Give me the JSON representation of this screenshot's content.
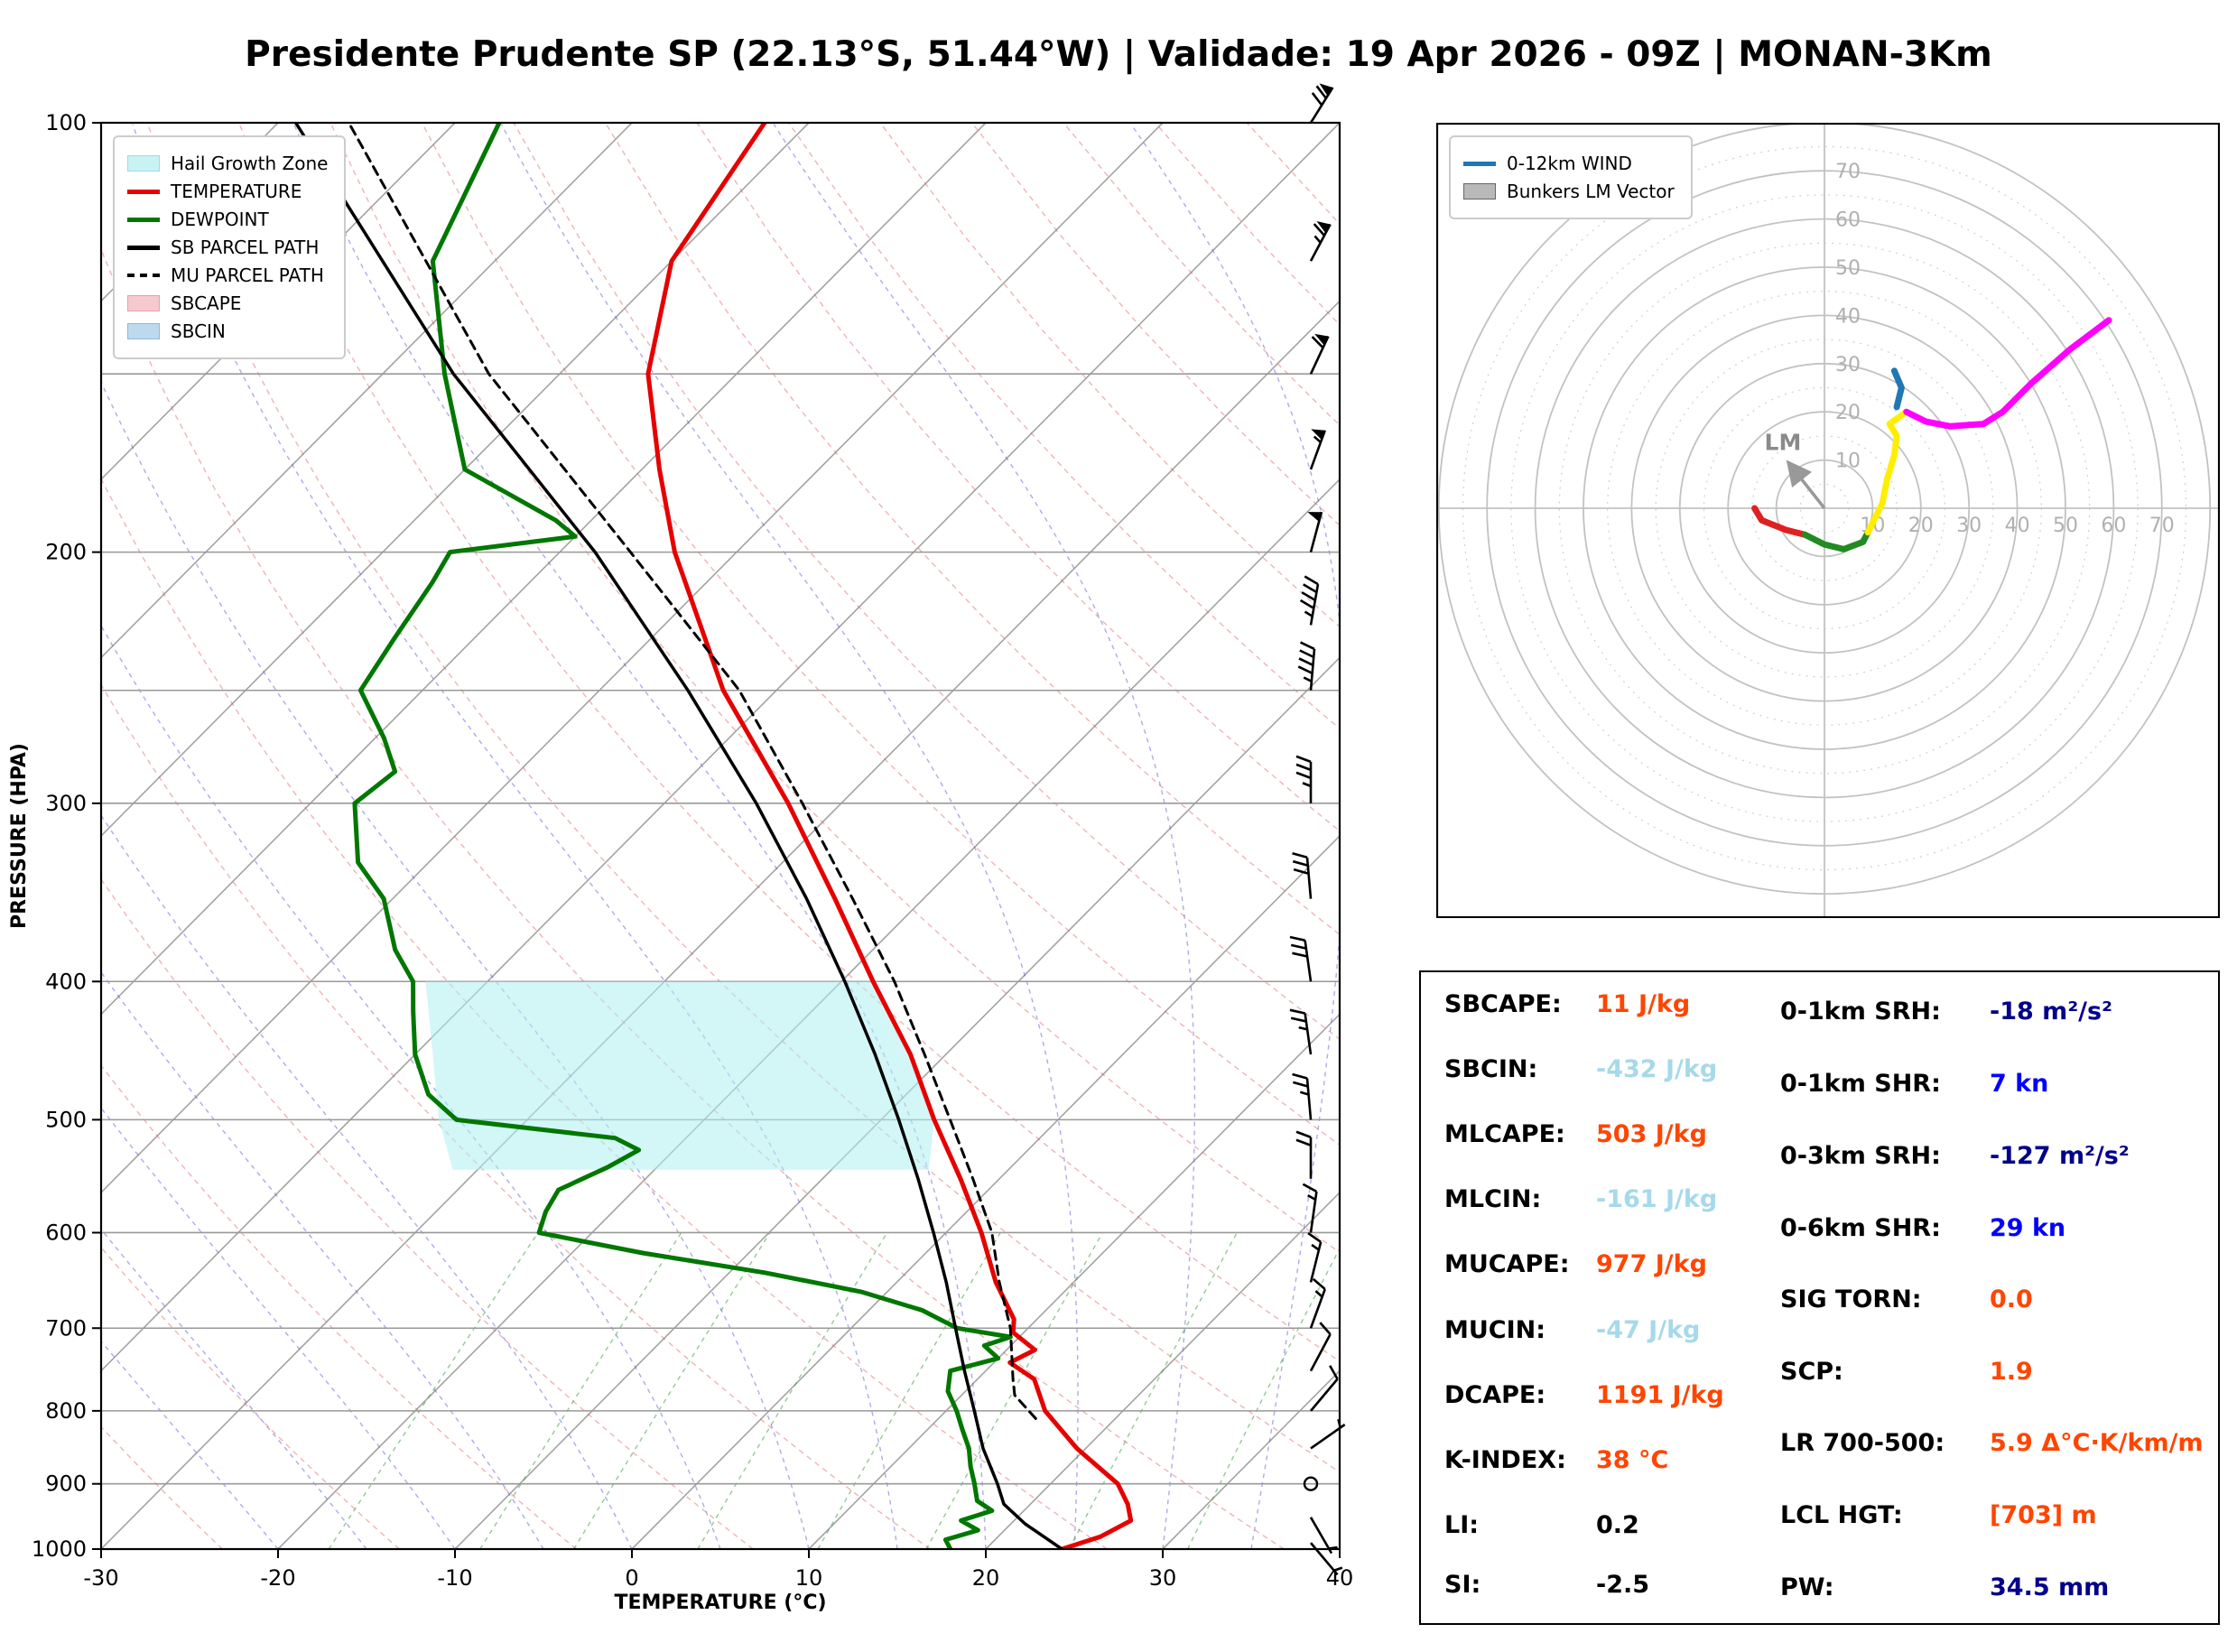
{
  "chart_data": [
    {
      "type": "line",
      "id": "skewt",
      "title": "Presidente Prudente SP (22.13°S, 51.44°W) | Validade: 19 Apr 2026 - 09Z | MONAN-3Km",
      "xlabel": "TEMPERATURE (°C)",
      "ylabel": "PRESSURE (HPA)",
      "x_axis": {
        "range": [
          -30,
          40
        ],
        "ticks": [
          -30,
          -20,
          -10,
          0,
          10,
          20,
          30,
          40
        ]
      },
      "y_axis": {
        "range": [
          1000,
          100
        ],
        "scale": "log",
        "ticks": [
          100,
          200,
          300,
          400,
          500,
          600,
          700,
          800,
          900,
          1000
        ],
        "gridlines": [
          100,
          150,
          200,
          250,
          300,
          400,
          500,
          600,
          700,
          800,
          900,
          1000
        ]
      },
      "skew_c_per_decade": 80,
      "legend": {
        "position": "upper left",
        "entries": [
          {
            "label": "Hail Growth Zone",
            "swatch": "patch",
            "color": "#c9f2f4",
            "border": "#9adfe3"
          },
          {
            "label": "TEMPERATURE",
            "swatch": "line",
            "color": "#e60000"
          },
          {
            "label": "DEWPOINT",
            "swatch": "line",
            "color": "#007700"
          },
          {
            "label": "SB PARCEL PATH",
            "swatch": "line",
            "color": "#000000"
          },
          {
            "label": "MU PARCEL PATH",
            "swatch": "dashed",
            "color": "#000000"
          },
          {
            "label": "SBCAPE",
            "swatch": "patch",
            "color": "#f6c9cf",
            "border": "#e8a0a8"
          },
          {
            "label": "SBCIN",
            "swatch": "patch",
            "color": "#bcd9ee",
            "border": "#93b8d8"
          }
        ]
      },
      "series": [
        {
          "name": "TEMPERATURE",
          "color": "#e60000",
          "width": 5,
          "points": [
            [
              1000,
              24.3
            ],
            [
              980,
              25.8
            ],
            [
              955,
              26.6
            ],
            [
              930,
              25.5
            ],
            [
              900,
              23.8
            ],
            [
              850,
              19.5
            ],
            [
              800,
              15.6
            ],
            [
              760,
              13.2
            ],
            [
              740,
              10.9
            ],
            [
              725,
              11.6
            ],
            [
              705,
              9.4
            ],
            [
              690,
              8.7
            ],
            [
              650,
              5.6
            ],
            [
              600,
              2.0
            ],
            [
              550,
              -2.2
            ],
            [
              500,
              -7.0
            ],
            [
              450,
              -12.0
            ],
            [
              400,
              -18.2
            ],
            [
              350,
              -25.0
            ],
            [
              300,
              -33.0
            ],
            [
              250,
              -43.0
            ],
            [
              200,
              -53.5
            ],
            [
              175,
              -59.0
            ],
            [
              150,
              -65.0
            ],
            [
              125,
              -70.0
            ],
            [
              100,
              -72.5
            ]
          ]
        },
        {
          "name": "DEWPOINT",
          "color": "#007700",
          "width": 5,
          "points": [
            [
              1000,
              18.0
            ],
            [
              985,
              17.2
            ],
            [
              970,
              18.5
            ],
            [
              955,
              17.0
            ],
            [
              940,
              18.2
            ],
            [
              925,
              16.8
            ],
            [
              900,
              15.7
            ],
            [
              875,
              14.5
            ],
            [
              850,
              13.4
            ],
            [
              825,
              12.0
            ],
            [
              800,
              10.6
            ],
            [
              775,
              9.0
            ],
            [
              750,
              8.0
            ],
            [
              735,
              10.0
            ],
            [
              720,
              8.5
            ],
            [
              710,
              9.5
            ],
            [
              700,
              6.0
            ],
            [
              690,
              4.5
            ],
            [
              680,
              3.0
            ],
            [
              660,
              -1.5
            ],
            [
              640,
              -8.0
            ],
            [
              620,
              -16.0
            ],
            [
              600,
              -23.0
            ],
            [
              580,
              -23.8
            ],
            [
              560,
              -24.3
            ],
            [
              540,
              -22.8
            ],
            [
              525,
              -22.0
            ],
            [
              515,
              -24.0
            ],
            [
              500,
              -34.0
            ],
            [
              480,
              -37.0
            ],
            [
              450,
              -40.0
            ],
            [
              420,
              -42.5
            ],
            [
              400,
              -44.2
            ],
            [
              380,
              -47.0
            ],
            [
              350,
              -50.5
            ],
            [
              330,
              -54.0
            ],
            [
              300,
              -57.5
            ],
            [
              285,
              -57.0
            ],
            [
              270,
              -59.5
            ],
            [
              250,
              -63.5
            ],
            [
              230,
              -64.5
            ],
            [
              210,
              -65.5
            ],
            [
              200,
              -66.2
            ],
            [
              195,
              -60.0
            ],
            [
              190,
              -62.0
            ],
            [
              175,
              -70.0
            ],
            [
              150,
              -76.5
            ],
            [
              125,
              -83.5
            ],
            [
              100,
              -87.5
            ]
          ]
        },
        {
          "name": "SB PARCEL PATH",
          "color": "#000000",
          "width": 3.5,
          "points": [
            [
              1000,
              24.3
            ],
            [
              960,
              20.8
            ],
            [
              930,
              18.5
            ],
            [
              900,
              17.0
            ],
            [
              850,
              14.2
            ],
            [
              800,
              11.6
            ],
            [
              750,
              8.8
            ],
            [
              700,
              5.9
            ],
            [
              650,
              2.8
            ],
            [
              600,
              -0.7
            ],
            [
              550,
              -4.6
            ],
            [
              500,
              -9.0
            ],
            [
              450,
              -14.0
            ],
            [
              400,
              -19.8
            ],
            [
              350,
              -26.6
            ],
            [
              300,
              -34.8
            ],
            [
              250,
              -45.0
            ],
            [
              200,
              -58.0
            ],
            [
              150,
              -76.0
            ],
            [
              100,
              -99.0
            ]
          ]
        },
        {
          "name": "MU PARCEL PATH",
          "color": "#000000",
          "width": 3,
          "dash": "10 7",
          "points": [
            [
              810,
              15.5
            ],
            [
              780,
              13.0
            ],
            [
              760,
              12.0
            ],
            [
              700,
              9.0
            ],
            [
              650,
              5.8
            ],
            [
              600,
              2.6
            ],
            [
              550,
              -1.5
            ],
            [
              500,
              -6.1
            ],
            [
              450,
              -11.2
            ],
            [
              400,
              -17.0
            ],
            [
              350,
              -24.0
            ],
            [
              300,
              -32.2
            ],
            [
              250,
              -42.1
            ],
            [
              200,
              -56.0
            ],
            [
              150,
              -74.0
            ],
            [
              100,
              -96.0
            ]
          ]
        }
      ],
      "hail_growth_zone_polygon": [
        [
          542,
          -4.5
        ],
        [
          500,
          -7.0
        ],
        [
          450,
          -12.0
        ],
        [
          400,
          -18.2
        ],
        [
          400,
          -43.5
        ],
        [
          450,
          -39.0
        ],
        [
          500,
          -35.0
        ],
        [
          542,
          -31.4
        ]
      ],
      "wind_barbs_p_kn_deg": [
        [
          100,
          72,
          32
        ],
        [
          125,
          68,
          28
        ],
        [
          150,
          62,
          25
        ],
        [
          175,
          55,
          20
        ],
        [
          200,
          52,
          15
        ],
        [
          225,
          48,
          10
        ],
        [
          250,
          45,
          5
        ],
        [
          300,
          35,
          0
        ],
        [
          350,
          32,
          -5
        ],
        [
          400,
          30,
          -8
        ],
        [
          450,
          25,
          -8
        ],
        [
          500,
          24,
          -5
        ],
        [
          550,
          20,
          0
        ],
        [
          600,
          18,
          8
        ],
        [
          650,
          15,
          14
        ],
        [
          700,
          15,
          20
        ],
        [
          750,
          12,
          28
        ],
        [
          800,
          10,
          40
        ],
        [
          850,
          8,
          55
        ],
        [
          900,
          0,
          0
        ],
        [
          950,
          4,
          150
        ],
        [
          990,
          3,
          140
        ]
      ],
      "background": {
        "isotherm_step_c": 10,
        "dry_adiabats_theta_k": [
          250,
          260,
          270,
          280,
          290,
          300,
          310,
          320,
          330,
          340,
          350,
          360,
          370,
          380,
          390,
          400,
          410,
          420,
          430,
          440
        ],
        "moist_adiabat_start_c": [
          -20,
          -15,
          -10,
          -5,
          0,
          5,
          10,
          15,
          20,
          25,
          30,
          35,
          40
        ],
        "mixing_ratio_g_kg": [
          1,
          2,
          3,
          5,
          8,
          12,
          20,
          30
        ]
      }
    },
    {
      "type": "line",
      "id": "hodograph",
      "rings_kn": [
        10,
        20,
        30,
        40,
        50,
        60,
        70
      ],
      "legend": {
        "position": "upper left",
        "entries": [
          {
            "label": "0-12km WIND",
            "swatch": "line",
            "color": "#1f77b4"
          },
          {
            "label": "Bunkers LM Vector",
            "swatch": "patch",
            "color": "#b9b9b9",
            "border": "#666666"
          }
        ]
      },
      "trace": [
        {
          "name": "0-1km",
          "color": "#dd2222",
          "points": [
            [
              -14.5,
              0
            ],
            [
              -13,
              -2.5
            ],
            [
              -8,
              -4.5
            ],
            [
              -4,
              -5.5
            ]
          ]
        },
        {
          "name": "1-3km",
          "color": "#228b22",
          "points": [
            [
              -4,
              -5.5
            ],
            [
              0,
              -7.5
            ],
            [
              4,
              -8.5
            ],
            [
              8,
              -7
            ],
            [
              9,
              -5
            ]
          ]
        },
        {
          "name": "3-6km",
          "color": "#ffee00",
          "points": [
            [
              9,
              -5
            ],
            [
              12,
              1
            ],
            [
              13,
              6
            ],
            [
              14.5,
              11
            ],
            [
              15,
              15
            ],
            [
              13.5,
              17.5
            ],
            [
              17,
              20
            ]
          ]
        },
        {
          "name": "6-9km",
          "color": "#1f77b4",
          "points": [
            [
              15,
              21
            ],
            [
              16,
              25
            ],
            [
              14.5,
              28.5
            ]
          ]
        },
        {
          "name": "9-12km",
          "color": "#ff00ff",
          "points": [
            [
              17,
              20
            ],
            [
              21,
              18
            ],
            [
              26,
              17
            ],
            [
              33,
              17.5
            ],
            [
              37,
              20
            ],
            [
              43,
              26
            ],
            [
              51,
              33
            ],
            [
              59,
              39
            ]
          ]
        }
      ],
      "lm": {
        "label": "LM",
        "u": -7.5,
        "v": 9.5
      }
    }
  ],
  "indices": {
    "left": [
      {
        "label": "SBCAPE:",
        "value": "11 J/kg",
        "color": "#ff4500"
      },
      {
        "label": "SBCIN:",
        "value": "-432 J/kg",
        "color": "#a6d9ea"
      },
      {
        "label": "MLCAPE:",
        "value": "503 J/kg",
        "color": "#ff4500"
      },
      {
        "label": "MLCIN:",
        "value": "-161 J/kg",
        "color": "#a6d9ea"
      },
      {
        "label": "MUCAPE:",
        "value": "977 J/kg",
        "color": "#ff4500"
      },
      {
        "label": "MUCIN:",
        "value": "-47 J/kg",
        "color": "#a6d9ea"
      },
      {
        "label": "DCAPE:",
        "value": "1191 J/kg",
        "color": "#ff4500"
      },
      {
        "label": "K-INDEX:",
        "value": "38 °C",
        "color": "#ff4500"
      },
      {
        "label": "LI:",
        "value": "0.2",
        "color": "#000000"
      },
      {
        "label": "SI:",
        "value": "-2.5",
        "color": "#000000"
      }
    ],
    "right": [
      {
        "label": "0-1km SRH:",
        "value": "-18 m²/s²",
        "color": "#00008b"
      },
      {
        "label": "0-1km SHR:",
        "value": "7 kn",
        "color": "#0000ff"
      },
      {
        "label": "0-3km SRH:",
        "value": "-127 m²/s²",
        "color": "#00008b"
      },
      {
        "label": "0-6km SHR:",
        "value": "29 kn",
        "color": "#0000ff"
      },
      {
        "label": "SIG TORN:",
        "value": "0.0",
        "color": "#ff4500"
      },
      {
        "label": "SCP:",
        "value": "1.9",
        "color": "#ff4500"
      },
      {
        "label": "LR 700-500:",
        "value": "5.9 Δ°C·K/km/m",
        "color": "#ff4500"
      },
      {
        "label": "LCL HGT:",
        "value": "[703] m",
        "color": "#ff4500"
      },
      {
        "label": "PW:",
        "value": "34.5 mm",
        "color": "#00008b"
      }
    ]
  }
}
